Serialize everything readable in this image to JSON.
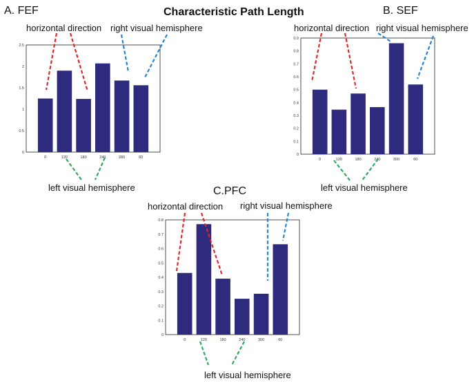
{
  "figure": {
    "title": "Characteristic Path Length",
    "colors": {
      "bar": "#2e2b7e",
      "horizontal": "#e0282c",
      "right": "#2a86cc",
      "left": "#2eaa5a"
    }
  },
  "chart_data": [
    {
      "type": "bar",
      "title": "A. FEF",
      "categories": [
        "0",
        "120",
        "180",
        "240",
        "280",
        "60"
      ],
      "values": [
        1.25,
        1.9,
        1.24,
        2.07,
        1.67,
        1.56
      ],
      "ylim": [
        0,
        2.5
      ],
      "yticks": [
        "0",
        "0.5",
        "1",
        "1.5",
        "2",
        "2.5"
      ],
      "xlabel": "",
      "ylabel": "",
      "annotations": {
        "horizontal": "horizontal direction",
        "right": "right visual hemisphere",
        "left": "left visual hemisphere"
      }
    },
    {
      "type": "bar",
      "title": "B. SEF",
      "categories": [
        "0",
        "120",
        "180",
        "240",
        "300",
        "60"
      ],
      "values": [
        0.5,
        0.345,
        0.47,
        0.365,
        0.86,
        0.54
      ],
      "ylim": [
        0,
        0.9
      ],
      "yticks": [
        "0",
        "0.1",
        "0.2",
        "0.3",
        "0.4",
        "0.5",
        "0.6",
        "0.7",
        "0.8",
        "0.9"
      ],
      "xlabel": "",
      "ylabel": "",
      "annotations": {
        "horizontal": "horizontal direction",
        "right": "right visual hemisphere",
        "left": "left visual hemisphere"
      }
    },
    {
      "type": "bar",
      "title": "C.PFC",
      "categories": [
        "0",
        "120",
        "180",
        "240",
        "300",
        "60"
      ],
      "values": [
        0.43,
        0.77,
        0.39,
        0.25,
        0.285,
        0.63
      ],
      "ylim": [
        0,
        0.8
      ],
      "yticks": [
        "0",
        "0.1",
        "0.2",
        "0.3",
        "0.4",
        "0.5",
        "0.6",
        "0.7",
        "0.8"
      ],
      "xlabel": "",
      "ylabel": "",
      "annotations": {
        "horizontal": "horizontal direction",
        "right": "right visual hemisphere",
        "left": "left visual hemisphere"
      }
    }
  ]
}
